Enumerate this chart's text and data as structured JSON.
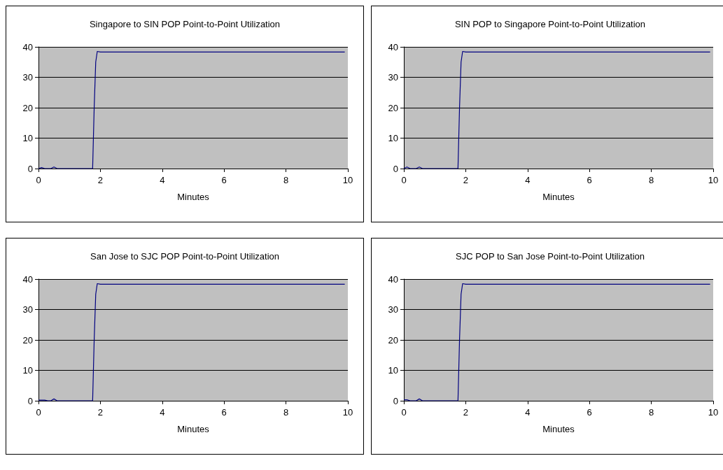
{
  "chart_data": [
    {
      "type": "line",
      "title": "Singapore to SIN POP Point-to-Point Utilization",
      "xlabel": "Minutes",
      "x": [
        0,
        0.1,
        0.2,
        0.3,
        0.4,
        0.5,
        0.6,
        1.7,
        1.75,
        1.8,
        1.85,
        1.9,
        2.0,
        9.9
      ],
      "series": [
        {
          "color": "#000080",
          "values": [
            0,
            0.3,
            0,
            0,
            0,
            0.5,
            0,
            0,
            0,
            20,
            35,
            38.5,
            38.3,
            38.3
          ]
        }
      ],
      "xlim": [
        0,
        10
      ],
      "xticks": [
        0,
        2,
        4,
        6,
        8,
        10
      ],
      "ylim": [
        0,
        40
      ],
      "yticks": [
        0,
        10,
        20,
        30,
        40
      ],
      "grid": "y",
      "marker": "none"
    },
    {
      "type": "line",
      "title": "SIN POP to Singapore Point-to-Point Utilization",
      "xlabel": "Minutes",
      "x": [
        0,
        0.1,
        0.2,
        0.3,
        0.4,
        0.5,
        0.6,
        1.7,
        1.75,
        1.8,
        1.85,
        1.9,
        2.0,
        9.9
      ],
      "series": [
        {
          "color": "#000080",
          "values": [
            0,
            0.5,
            0,
            0,
            0,
            0.5,
            0,
            0,
            0,
            20,
            35,
            38.5,
            38.3,
            38.3
          ]
        }
      ],
      "xlim": [
        0,
        10
      ],
      "xticks": [
        0,
        2,
        4,
        6,
        8,
        10
      ],
      "ylim": [
        0,
        40
      ],
      "yticks": [
        0,
        10,
        20,
        30,
        40
      ],
      "grid": "y",
      "marker": "none"
    },
    {
      "type": "line",
      "title": "San Jose to SJC POP Point-to-Point Utilization",
      "xlabel": "Minutes",
      "x": [
        0,
        0.1,
        0.2,
        0.3,
        0.4,
        0.5,
        0.6,
        1.7,
        1.75,
        1.8,
        1.85,
        1.9,
        2.0,
        9.9
      ],
      "series": [
        {
          "color": "#000080",
          "values": [
            0.2,
            0.2,
            0.2,
            0,
            0,
            0.6,
            0,
            0,
            0,
            20,
            35,
            38.5,
            38.3,
            38.3
          ]
        }
      ],
      "xlim": [
        0,
        10
      ],
      "xticks": [
        0,
        2,
        4,
        6,
        8,
        10
      ],
      "ylim": [
        0,
        40
      ],
      "yticks": [
        0,
        10,
        20,
        30,
        40
      ],
      "grid": "y",
      "marker": "none"
    },
    {
      "type": "line",
      "title": "SJC POP to San Jose Point-to-Point Utilization",
      "xlabel": "Minutes",
      "x": [
        0,
        0.1,
        0.2,
        0.3,
        0.4,
        0.5,
        0.6,
        1.7,
        1.75,
        1.8,
        1.85,
        1.9,
        2.0,
        9.9
      ],
      "series": [
        {
          "color": "#000080",
          "values": [
            0.3,
            0.3,
            0,
            0,
            0,
            0.6,
            0,
            0,
            0,
            20,
            35,
            38.5,
            38.3,
            38.3
          ]
        }
      ],
      "xlim": [
        0,
        10
      ],
      "xticks": [
        0,
        2,
        4,
        6,
        8,
        10
      ],
      "ylim": [
        0,
        40
      ],
      "yticks": [
        0,
        10,
        20,
        30,
        40
      ],
      "grid": "y",
      "marker": "none"
    }
  ]
}
